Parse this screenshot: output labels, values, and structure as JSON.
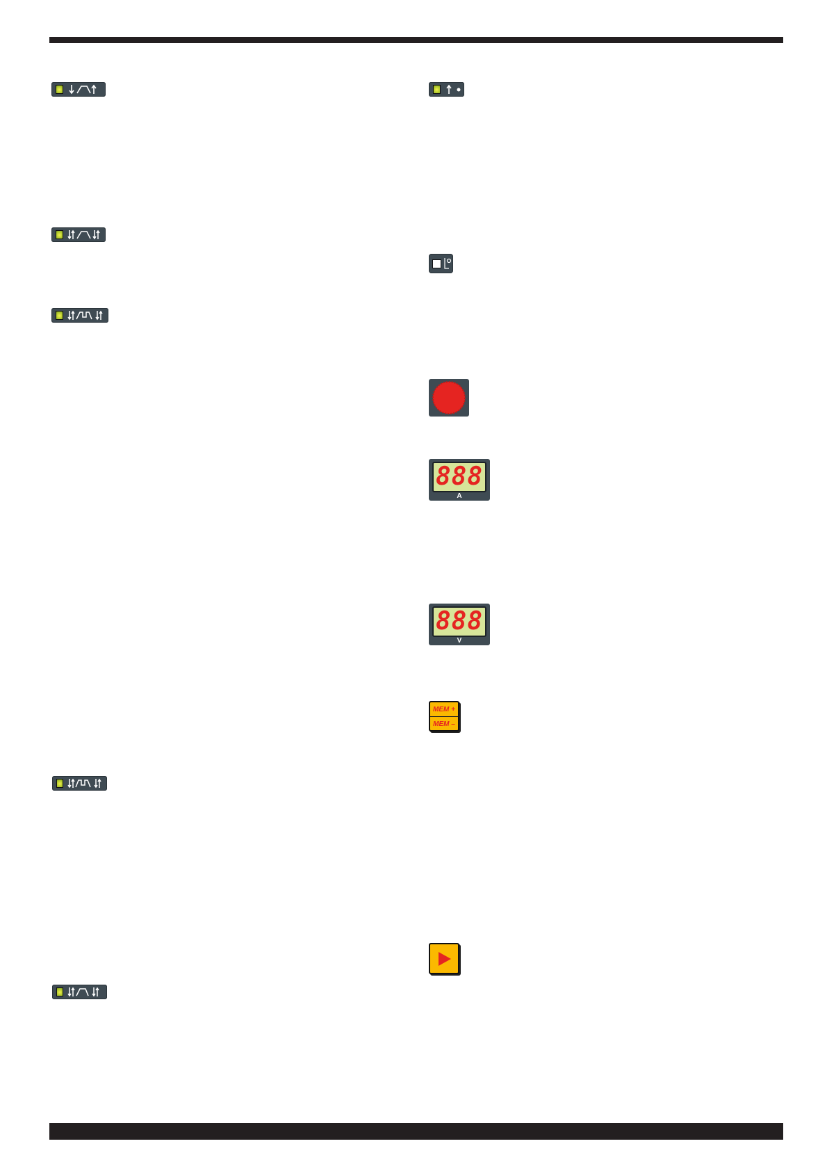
{
  "colors": {
    "rule": "#231f20",
    "panel": "#3f4b53",
    "led": "#d4e03a",
    "accent_red": "#e52421",
    "button_yellow": "#fbb900",
    "display_bg": "#d7e59a"
  },
  "left_column": {
    "icons": [
      {
        "name": "2-stroke-mode-icon",
        "symbol": "down-ramp-up"
      },
      {
        "name": "4-stroke-mode-icon",
        "symbol": "updown-ramp-updown"
      },
      {
        "name": "bilevel-mode-icon",
        "symbol": "updown-bilevel-updown"
      },
      {
        "name": "bilevel-pulse-mode-icon",
        "symbol": "updown-bilevel-updown"
      },
      {
        "name": "4-stroke-alt-mode-icon",
        "symbol": "updown-ramp-updown"
      }
    ]
  },
  "right_column": {
    "spot_icon": "up-dot",
    "gas_test_icon": "gas-test",
    "knob_icon": "encoder-knob",
    "current_display": {
      "digits": "888",
      "unit": "A"
    },
    "voltage_display": {
      "digits": "888",
      "unit": "V"
    },
    "memory_button": {
      "plus": "MEM +",
      "minus": "MEM –"
    },
    "play_icon": "play"
  }
}
